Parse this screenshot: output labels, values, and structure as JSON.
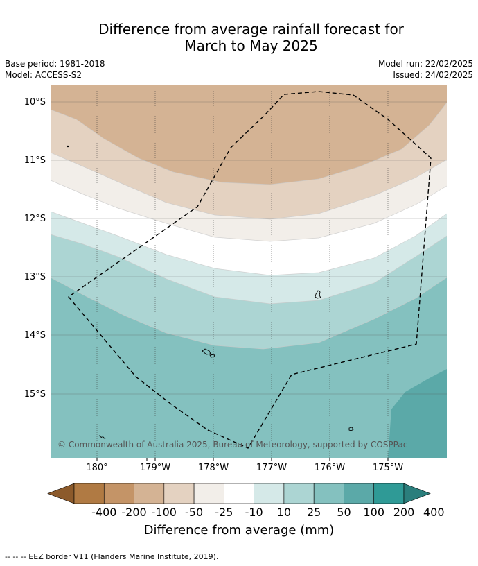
{
  "title_line1": "Difference from average rainfall forecast for",
  "title_line2": "March to May 2025",
  "meta_left": [
    "Base period: 1981-2018",
    "Model: ACCESS-S2"
  ],
  "meta_right": [
    "Model run: 22/02/2025",
    "Issued: 24/02/2025"
  ],
  "copyright": "© Commonwealth of Australia 2025, Bureau of Meteorology, supported by COSPPac",
  "lat_labels": [
    "10°S",
    "11°S",
    "12°S",
    "13°S",
    "14°S",
    "15°S"
  ],
  "lon_labels": [
    "180°",
    "179°W",
    "178°W",
    "177°W",
    "176°W",
    "175°W"
  ],
  "colorbar": {
    "title": "Difference from average (mm)",
    "labels": [
      "-400",
      "-200",
      "-100",
      "-50",
      "-25",
      "-10",
      "10",
      "25",
      "50",
      "100",
      "200",
      "400"
    ],
    "colors": [
      "#8c5a2b",
      "#b07a43",
      "#c49467",
      "#d4b394",
      "#e4d2c1",
      "#f2eee9",
      "#ffffff",
      "#d5e9e8",
      "#acd5d3",
      "#84c1bf",
      "#5ba9a8",
      "#2f9a96",
      "#2b7e7c"
    ]
  },
  "footer": "--  --  -- EEZ border V11 (Flanders Marine Institute, 2019)."
}
